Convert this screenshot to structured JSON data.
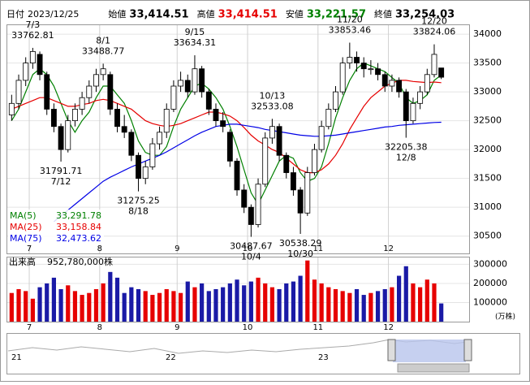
{
  "header": {
    "fields": [
      {
        "label": "日付",
        "value": "2023/12/25",
        "color": "#000000"
      },
      {
        "label": "始値",
        "value": "33,414.51",
        "color": "#000000"
      },
      {
        "label": "高値",
        "value": "33,414.51",
        "color": "#e60000"
      },
      {
        "label": "安値",
        "value": "33,221.57",
        "color": "#008000"
      },
      {
        "label": "終値",
        "value": "33,254.03",
        "color": "#000000"
      }
    ]
  },
  "chart_data": {
    "type": "candlestick",
    "categories": [
      null,
      null,
      null,
      "7",
      null,
      null,
      null,
      null,
      null,
      null,
      null,
      null,
      null,
      "8",
      null,
      null,
      null,
      null,
      null,
      null,
      null,
      null,
      null,
      null,
      "9",
      null,
      null,
      null,
      null,
      null,
      null,
      null,
      null,
      null,
      "10",
      null,
      null,
      null,
      null,
      null,
      null,
      null,
      null,
      null,
      "11",
      null,
      null,
      null,
      null,
      null,
      null,
      null,
      null,
      null,
      "12",
      null,
      null,
      null,
      null,
      null,
      null,
      null
    ],
    "ohlc": [
      [
        32600,
        32950,
        32500,
        32800
      ],
      [
        32800,
        33300,
        32700,
        33200
      ],
      [
        33200,
        33600,
        33100,
        33500
      ],
      [
        33500,
        33762.81,
        33400,
        33700
      ],
      [
        33650,
        33700,
        33200,
        33300
      ],
      [
        33300,
        33350,
        32600,
        32700
      ],
      [
        32700,
        32800,
        32300,
        32400
      ],
      [
        32400,
        32450,
        31791.71,
        32000
      ],
      [
        32000,
        32600,
        31950,
        32500
      ],
      [
        32500,
        32800,
        32400,
        32700
      ],
      [
        32700,
        33000,
        32600,
        32900
      ],
      [
        32900,
        33200,
        32800,
        33100
      ],
      [
        33100,
        33400,
        33000,
        33300
      ],
      [
        33300,
        33488.77,
        33200,
        33400
      ],
      [
        33300,
        33350,
        32600,
        32700
      ],
      [
        32700,
        32800,
        32300,
        32400
      ],
      [
        32400,
        32600,
        32200,
        32300
      ],
      [
        32300,
        32350,
        31800,
        31900
      ],
      [
        31900,
        31950,
        31275.25,
        31500
      ],
      [
        31500,
        31800,
        31400,
        31700
      ],
      [
        31700,
        32200,
        31650,
        32100
      ],
      [
        32100,
        32400,
        32000,
        32300
      ],
      [
        32300,
        32800,
        32200,
        32700
      ],
      [
        32700,
        33200,
        32650,
        33100
      ],
      [
        33100,
        33350,
        33000,
        33200
      ],
      [
        33200,
        33300,
        32900,
        33000
      ],
      [
        33000,
        33634.31,
        32950,
        33400
      ],
      [
        33400,
        33450,
        32900,
        33000
      ],
      [
        33000,
        33050,
        32600,
        32700
      ],
      [
        32700,
        32800,
        32400,
        32500
      ],
      [
        32500,
        32650,
        32300,
        32400
      ],
      [
        32300,
        32350,
        31700,
        31800
      ],
      [
        31800,
        31850,
        31200,
        31300
      ],
      [
        31300,
        31400,
        30900,
        31000
      ],
      [
        31000,
        31050,
        30487.67,
        30700
      ],
      [
        30700,
        31500,
        30650,
        31400
      ],
      [
        31400,
        32300,
        31350,
        32200
      ],
      [
        32200,
        32533.08,
        32100,
        32400
      ],
      [
        32400,
        32450,
        31800,
        31900
      ],
      [
        31900,
        31950,
        31500,
        31600
      ],
      [
        31600,
        31700,
        31200,
        31300
      ],
      [
        31300,
        31350,
        30538.29,
        30900
      ],
      [
        30900,
        31700,
        30850,
        31600
      ],
      [
        31600,
        32100,
        31550,
        32000
      ],
      [
        32000,
        32500,
        31950,
        32400
      ],
      [
        32400,
        32800,
        32350,
        32700
      ],
      [
        32700,
        33100,
        32650,
        33000
      ],
      [
        33000,
        33600,
        32950,
        33500
      ],
      [
        33500,
        33853.46,
        33400,
        33600
      ],
      [
        33600,
        33700,
        33350,
        33500
      ],
      [
        33500,
        33600,
        33250,
        33400
      ],
      [
        33400,
        33550,
        33300,
        33400
      ],
      [
        33400,
        33500,
        33200,
        33300
      ],
      [
        33300,
        33350,
        33000,
        33100
      ],
      [
        33100,
        33300,
        33000,
        33200
      ],
      [
        33200,
        33250,
        32900,
        33000
      ],
      [
        33000,
        33050,
        32205.38,
        32500
      ],
      [
        32500,
        32900,
        32450,
        32800
      ],
      [
        32800,
        33100,
        32700,
        33000
      ],
      [
        33000,
        33400,
        32950,
        33300
      ],
      [
        33300,
        33824.06,
        33250,
        33650
      ],
      [
        33414.51,
        33414.51,
        33221.57,
        33254.03
      ]
    ],
    "series": [
      {
        "name": "MA(5)",
        "color": "#008000",
        "last": {
          "value": 33291.78,
          "label": "33,291.78"
        },
        "values": [
          32500,
          32700,
          33000,
          33300,
          33400,
          33300,
          33100,
          32800,
          32500,
          32300,
          32500,
          32650,
          32900,
          33100,
          33100,
          32950,
          32800,
          32500,
          32150,
          31950,
          31900,
          31900,
          32050,
          32400,
          32700,
          32900,
          33100,
          33150,
          33050,
          32900,
          32700,
          32400,
          32050,
          31650,
          31250,
          31050,
          31300,
          31550,
          31800,
          31900,
          31850,
          31600,
          31450,
          31500,
          31700,
          32100,
          32550,
          32900,
          33200,
          33400,
          33500,
          33450,
          33400,
          33350,
          33250,
          33150,
          32900,
          32800,
          32850,
          32950,
          33200,
          33291.78
        ]
      },
      {
        "name": "MA(25)",
        "color": "#e60000",
        "last": {
          "value": 33158.84,
          "label": "33,158.84"
        },
        "values": [
          32700,
          32750,
          32800,
          32850,
          32900,
          32900,
          32850,
          32800,
          32750,
          32750,
          32780,
          32800,
          32850,
          32870,
          32850,
          32800,
          32750,
          32700,
          32600,
          32500,
          32450,
          32420,
          32400,
          32420,
          32450,
          32500,
          32550,
          32600,
          32650,
          32650,
          32620,
          32580,
          32500,
          32380,
          32250,
          32150,
          32080,
          32000,
          31950,
          31850,
          31750,
          31650,
          31600,
          31600,
          31650,
          31750,
          31900,
          32100,
          32350,
          32550,
          32750,
          32900,
          33000,
          33100,
          33150,
          33200,
          33200,
          33180,
          33170,
          33160,
          33170,
          33158.84
        ]
      },
      {
        "name": "MA(75)",
        "color": "#0000e6",
        "last": {
          "value": 32473.62,
          "label": "32,473.62"
        },
        "values": [
          null,
          null,
          null,
          null,
          null,
          null,
          30750,
          30850,
          30950,
          31050,
          31150,
          31250,
          31350,
          31450,
          31520,
          31580,
          31640,
          31700,
          31750,
          31800,
          31850,
          31900,
          31960,
          32030,
          32100,
          32170,
          32240,
          32300,
          32350,
          32400,
          32420,
          32440,
          32440,
          32420,
          32400,
          32380,
          32350,
          32330,
          32310,
          32290,
          32270,
          32250,
          32240,
          32230,
          32230,
          32240,
          32250,
          32270,
          32290,
          32310,
          32330,
          32350,
          32370,
          32390,
          32400,
          32420,
          32430,
          32440,
          32450,
          32460,
          32470,
          32473.62
        ]
      }
    ],
    "ylim": [
      30200,
      34170
    ],
    "yticks": [
      30500,
      31000,
      31500,
      32000,
      32500,
      33000,
      33500,
      34000
    ],
    "up_color": "#ffffff",
    "down_color": "#000000",
    "annotations": [
      {
        "date": "7/3",
        "value": 33762.81
      },
      {
        "date": "7/12",
        "value": 31791.71
      },
      {
        "date": "8/1",
        "value": 33488.77
      },
      {
        "date": "8/18",
        "value": 31275.25
      },
      {
        "date": "9/15",
        "value": 33634.31
      },
      {
        "date": "10/4",
        "value": 30487.67
      },
      {
        "date": "10/13",
        "value": 32533.08
      },
      {
        "date": "10/30",
        "value": 30538.29
      },
      {
        "date": "11/20",
        "value": 33853.46
      },
      {
        "date": "12/8",
        "value": 32205.38
      },
      {
        "date": "12/20",
        "value": 33824.06
      }
    ],
    "volume": {
      "title": "出来高",
      "last_label": "952,780,000株",
      "unit": "(万株)",
      "up_color": "#e60000",
      "down_color": "#1a1aa6",
      "ylim": [
        0,
        340000
      ],
      "yticks": [
        100000,
        200000,
        300000
      ],
      "values": [
        150000,
        170000,
        160000,
        120000,
        180000,
        200000,
        230000,
        170000,
        190000,
        160000,
        140000,
        150000,
        170000,
        200000,
        260000,
        230000,
        150000,
        180000,
        170000,
        160000,
        140000,
        150000,
        170000,
        160000,
        150000,
        210000,
        180000,
        200000,
        160000,
        170000,
        180000,
        200000,
        220000,
        190000,
        210000,
        230000,
        200000,
        180000,
        170000,
        200000,
        210000,
        240000,
        320000,
        220000,
        200000,
        180000,
        170000,
        160000,
        150000,
        170000,
        140000,
        150000,
        160000,
        170000,
        180000,
        240000,
        290000,
        200000,
        180000,
        220000,
        200000,
        95278
      ]
    }
  },
  "navigator": {
    "labels": [
      "21",
      "22",
      "23"
    ]
  }
}
